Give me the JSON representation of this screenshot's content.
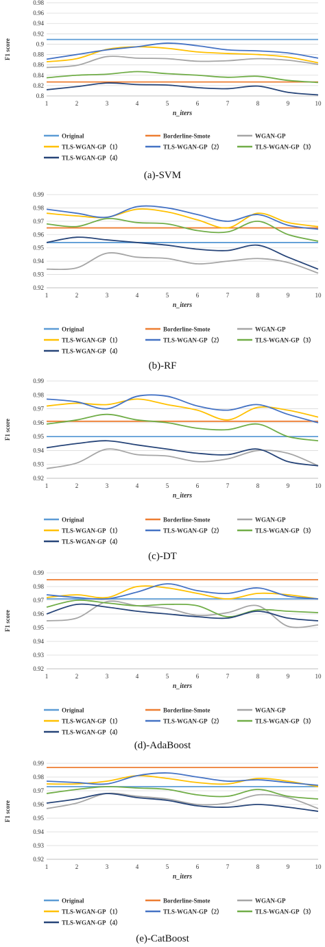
{
  "legend": {
    "original": "Original",
    "borderline": "Borderline-Smote",
    "wgan": "WGAN-GP",
    "tls1": "TLS-WGAN-GP（1）",
    "tls2": "TLS-WGAN-GP（2）",
    "tls3": "TLS-WGAN-GP（3）",
    "tls4": "TLS-WGAN-GP（4）"
  },
  "colors": {
    "original": "#5b9bd5",
    "borderline": "#ed7d31",
    "wgan": "#a5a5a5",
    "tls1": "#ffc000",
    "tls2": "#4472c4",
    "tls3": "#70ad47",
    "tls4": "#264478"
  },
  "chart_data": [
    {
      "type": "line",
      "caption": "(a)-SVM",
      "ylabel": "F1 score",
      "xlabel": "n_iters",
      "x": [
        1,
        2,
        3,
        4,
        5,
        6,
        7,
        8,
        9,
        10
      ],
      "ylim": [
        0.8,
        0.98
      ],
      "yticks": [
        "0.8",
        "0.82",
        "0.84",
        "0.86",
        "0.88",
        "0.9",
        "0.92",
        "0.94",
        "0.96",
        "0.98"
      ],
      "series": [
        {
          "name": "Original",
          "key": "original",
          "values": [
            0.909,
            0.909,
            0.909,
            0.909,
            0.909,
            0.909,
            0.909,
            0.909,
            0.909,
            0.909
          ]
        },
        {
          "name": "Borderline-Smote",
          "key": "borderline",
          "values": [
            0.827,
            0.827,
            0.827,
            0.827,
            0.827,
            0.827,
            0.827,
            0.827,
            0.827,
            0.827
          ]
        },
        {
          "name": "WGAN-GP",
          "key": "wgan",
          "values": [
            0.855,
            0.859,
            0.876,
            0.873,
            0.872,
            0.867,
            0.868,
            0.872,
            0.869,
            0.861
          ]
        },
        {
          "name": "TLS-WGAN-GP（1）",
          "key": "tls1",
          "values": [
            0.866,
            0.872,
            0.89,
            0.895,
            0.892,
            0.885,
            0.882,
            0.88,
            0.875,
            0.864
          ]
        },
        {
          "name": "TLS-WGAN-GP（2）",
          "key": "tls2",
          "values": [
            0.871,
            0.88,
            0.889,
            0.895,
            0.902,
            0.897,
            0.889,
            0.887,
            0.883,
            0.873
          ]
        },
        {
          "name": "TLS-WGAN-GP（3）",
          "key": "tls3",
          "values": [
            0.835,
            0.84,
            0.842,
            0.847,
            0.843,
            0.84,
            0.836,
            0.838,
            0.83,
            0.826
          ]
        },
        {
          "name": "TLS-WGAN-GP（4）",
          "key": "tls4",
          "values": [
            0.812,
            0.818,
            0.825,
            0.822,
            0.821,
            0.816,
            0.814,
            0.819,
            0.807,
            0.802
          ]
        }
      ]
    },
    {
      "type": "line",
      "caption": "(b)-RF",
      "ylabel": "",
      "xlabel": "n_iters",
      "x": [
        1,
        2,
        3,
        4,
        5,
        6,
        7,
        8,
        9,
        10
      ],
      "ylim": [
        0.92,
        0.99
      ],
      "yticks": [
        "0.92",
        "0.93",
        "0.94",
        "0.95",
        "0.96",
        "0.97",
        "0.98",
        "0.99"
      ],
      "series": [
        {
          "name": "Original",
          "key": "original",
          "values": [
            0.954,
            0.954,
            0.954,
            0.954,
            0.954,
            0.954,
            0.954,
            0.954,
            0.954,
            0.954
          ]
        },
        {
          "name": "Borderline-Smote",
          "key": "borderline",
          "values": [
            0.965,
            0.965,
            0.965,
            0.965,
            0.965,
            0.965,
            0.965,
            0.965,
            0.965,
            0.965
          ]
        },
        {
          "name": "WGAN-GP",
          "key": "wgan",
          "values": [
            0.934,
            0.935,
            0.946,
            0.943,
            0.942,
            0.938,
            0.94,
            0.942,
            0.939,
            0.931
          ]
        },
        {
          "name": "TLS-WGAN-GP（1）",
          "key": "tls1",
          "values": [
            0.976,
            0.974,
            0.973,
            0.979,
            0.977,
            0.971,
            0.965,
            0.976,
            0.969,
            0.966
          ]
        },
        {
          "name": "TLS-WGAN-GP（2）",
          "key": "tls2",
          "values": [
            0.979,
            0.976,
            0.973,
            0.981,
            0.98,
            0.975,
            0.97,
            0.975,
            0.967,
            0.964
          ]
        },
        {
          "name": "TLS-WGAN-GP（3）",
          "key": "tls3",
          "values": [
            0.968,
            0.966,
            0.972,
            0.969,
            0.968,
            0.963,
            0.962,
            0.97,
            0.96,
            0.955
          ]
        },
        {
          "name": "TLS-WGAN-GP（4）",
          "key": "tls4",
          "values": [
            0.954,
            0.958,
            0.956,
            0.954,
            0.952,
            0.949,
            0.948,
            0.952,
            0.943,
            0.934
          ]
        }
      ]
    },
    {
      "type": "line",
      "caption": "(c)-DT",
      "ylabel": "F1 score",
      "xlabel": "n_iters",
      "x": [
        1,
        2,
        3,
        4,
        5,
        6,
        7,
        8,
        9,
        10
      ],
      "ylim": [
        0.92,
        0.99
      ],
      "yticks": [
        "0.92",
        "0.93",
        "0.94",
        "0.95",
        "0.96",
        "0.97",
        "0.98",
        "0.99"
      ],
      "series": [
        {
          "name": "Original",
          "key": "original",
          "values": [
            0.95,
            0.95,
            0.95,
            0.95,
            0.95,
            0.95,
            0.95,
            0.95,
            0.95,
            0.95
          ]
        },
        {
          "name": "Borderline-Smote",
          "key": "borderline",
          "values": [
            0.961,
            0.961,
            0.961,
            0.961,
            0.961,
            0.961,
            0.961,
            0.961,
            0.961,
            0.961
          ]
        },
        {
          "name": "WGAN-GP",
          "key": "wgan",
          "values": [
            0.927,
            0.931,
            0.941,
            0.937,
            0.936,
            0.932,
            0.934,
            0.94,
            0.938,
            0.929
          ]
        },
        {
          "name": "TLS-WGAN-GP（1）",
          "key": "tls1",
          "values": [
            0.972,
            0.974,
            0.973,
            0.977,
            0.973,
            0.969,
            0.962,
            0.971,
            0.969,
            0.964
          ]
        },
        {
          "name": "TLS-WGAN-GP（2）",
          "key": "tls2",
          "values": [
            0.977,
            0.975,
            0.97,
            0.979,
            0.979,
            0.972,
            0.969,
            0.973,
            0.966,
            0.96
          ]
        },
        {
          "name": "TLS-WGAN-GP（3）",
          "key": "tls3",
          "values": [
            0.959,
            0.962,
            0.966,
            0.962,
            0.96,
            0.956,
            0.955,
            0.959,
            0.95,
            0.947
          ]
        },
        {
          "name": "TLS-WGAN-GP（4）",
          "key": "tls4",
          "values": [
            0.942,
            0.945,
            0.947,
            0.944,
            0.941,
            0.938,
            0.937,
            0.941,
            0.932,
            0.929
          ]
        }
      ]
    },
    {
      "type": "line",
      "caption": "(d)-AdaBoost",
      "ylabel": "F1 score",
      "xlabel": "n_iters",
      "x": [
        1,
        2,
        3,
        4,
        5,
        6,
        7,
        8,
        9,
        10
      ],
      "ylim": [
        0.92,
        0.99
      ],
      "yticks": [
        "0.92",
        "0.93",
        "0.94",
        "0.95",
        "0.96",
        "0.97",
        "0.98",
        "0.99"
      ],
      "series": [
        {
          "name": "Original",
          "key": "original",
          "values": [
            0.971,
            0.971,
            0.971,
            0.971,
            0.971,
            0.971,
            0.971,
            0.971,
            0.971,
            0.971
          ]
        },
        {
          "name": "Borderline-Smote",
          "key": "borderline",
          "values": [
            0.985,
            0.985,
            0.985,
            0.985,
            0.985,
            0.985,
            0.985,
            0.985,
            0.985,
            0.985
          ]
        },
        {
          "name": "WGAN-GP",
          "key": "wgan",
          "values": [
            0.955,
            0.957,
            0.969,
            0.966,
            0.964,
            0.959,
            0.961,
            0.966,
            0.951,
            0.952
          ]
        },
        {
          "name": "TLS-WGAN-GP（1）",
          "key": "tls1",
          "values": [
            0.972,
            0.974,
            0.972,
            0.98,
            0.979,
            0.975,
            0.971,
            0.975,
            0.974,
            0.971
          ]
        },
        {
          "name": "TLS-WGAN-GP（2）",
          "key": "tls2",
          "values": [
            0.974,
            0.972,
            0.971,
            0.976,
            0.982,
            0.977,
            0.975,
            0.979,
            0.973,
            0.971
          ]
        },
        {
          "name": "TLS-WGAN-GP（3）",
          "key": "tls3",
          "values": [
            0.965,
            0.97,
            0.968,
            0.966,
            0.967,
            0.966,
            0.958,
            0.963,
            0.962,
            0.961
          ]
        },
        {
          "name": "TLS-WGAN-GP（4）",
          "key": "tls4",
          "values": [
            0.96,
            0.967,
            0.965,
            0.962,
            0.96,
            0.958,
            0.957,
            0.962,
            0.957,
            0.955
          ]
        }
      ]
    },
    {
      "type": "line",
      "caption": "(e)-CatBoost",
      "ylabel": "F1 score",
      "xlabel": "n_iters",
      "x": [
        1,
        2,
        3,
        4,
        5,
        6,
        7,
        8,
        9,
        10
      ],
      "ylim": [
        0.92,
        0.99
      ],
      "yticks": [
        "0.92",
        "0.93",
        "0.94",
        "0.95",
        "0.96",
        "0.97",
        "0.98",
        "0.99"
      ],
      "series": [
        {
          "name": "Original",
          "key": "original",
          "values": [
            0.973,
            0.973,
            0.973,
            0.973,
            0.973,
            0.973,
            0.973,
            0.973,
            0.973,
            0.973
          ]
        },
        {
          "name": "Borderline-Smote",
          "key": "borderline",
          "values": [
            0.987,
            0.987,
            0.987,
            0.987,
            0.987,
            0.987,
            0.987,
            0.987,
            0.987,
            0.987
          ]
        },
        {
          "name": "WGAN-GP",
          "key": "wgan",
          "values": [
            0.957,
            0.961,
            0.968,
            0.966,
            0.964,
            0.96,
            0.961,
            0.967,
            0.965,
            0.957
          ]
        },
        {
          "name": "TLS-WGAN-GP（1）",
          "key": "tls1",
          "values": [
            0.975,
            0.975,
            0.977,
            0.981,
            0.979,
            0.976,
            0.975,
            0.979,
            0.977,
            0.973
          ]
        },
        {
          "name": "TLS-WGAN-GP（2）",
          "key": "tls2",
          "values": [
            0.977,
            0.976,
            0.975,
            0.981,
            0.983,
            0.98,
            0.977,
            0.978,
            0.976,
            0.974
          ]
        },
        {
          "name": "TLS-WGAN-GP（3）",
          "key": "tls3",
          "values": [
            0.968,
            0.971,
            0.973,
            0.972,
            0.971,
            0.967,
            0.966,
            0.971,
            0.966,
            0.964
          ]
        },
        {
          "name": "TLS-WGAN-GP（4）",
          "key": "tls4",
          "values": [
            0.961,
            0.964,
            0.968,
            0.965,
            0.963,
            0.959,
            0.958,
            0.96,
            0.958,
            0.955
          ]
        }
      ]
    }
  ]
}
